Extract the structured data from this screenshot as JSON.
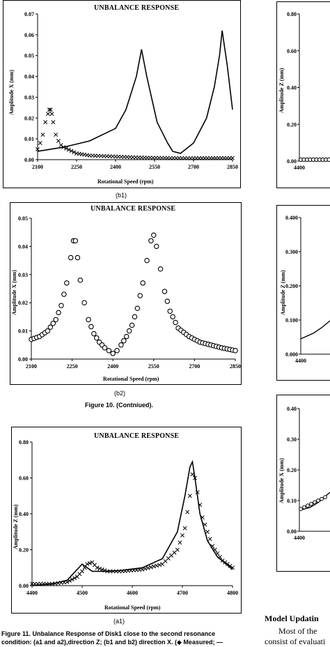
{
  "chart_data": [
    {
      "id": "b1",
      "type": "line",
      "title": "UNBALANCE RESPONSE",
      "xlabel": "Rotational Speed (rpm)",
      "ylabel": "Amplitude X (mm)",
      "xlim": [
        2100,
        2850
      ],
      "ylim": [
        0,
        0.07
      ],
      "xticks": [
        "2100",
        "2250",
        "2400",
        "2550",
        "2700",
        "2850"
      ],
      "yticks": [
        "0.00",
        "0.01",
        "0.02",
        "0.03",
        "0.04",
        "0.05",
        "0.06",
        "0.07"
      ],
      "caption": "(b1)",
      "series": [
        {
          "marker": "cross",
          "x": [
            2100,
            2110,
            2120,
            2130,
            2140,
            2145,
            2150,
            2155,
            2160,
            2170,
            2180,
            2190,
            2200,
            2250,
            2300,
            2400,
            2500,
            2600,
            2700,
            2850
          ],
          "y": [
            0.005,
            0.008,
            0.012,
            0.018,
            0.022,
            0.024,
            0.024,
            0.022,
            0.018,
            0.012,
            0.009,
            0.007,
            0.006,
            0.003,
            0.002,
            0.0015,
            0.001,
            0.0008,
            0.0007,
            0.0008
          ]
        },
        {
          "marker": "line",
          "x": [
            2100,
            2200,
            2300,
            2400,
            2440,
            2480,
            2500,
            2520,
            2560,
            2600,
            2620,
            2650,
            2700,
            2750,
            2780,
            2800,
            2810,
            2830,
            2850
          ],
          "y": [
            0.004,
            0.006,
            0.009,
            0.015,
            0.024,
            0.04,
            0.053,
            0.04,
            0.018,
            0.008,
            0.004,
            0.003,
            0.008,
            0.02,
            0.035,
            0.05,
            0.062,
            0.045,
            0.024
          ]
        }
      ]
    },
    {
      "id": "b2",
      "type": "scatter",
      "title": "UNBALANCE RESPONSE",
      "xlabel": "Rotational Speed (rpm)",
      "ylabel": "Amplitude X (mm)",
      "xlim": [
        2100,
        2850
      ],
      "ylim": [
        0,
        0.05
      ],
      "xticks": [
        "2100",
        "2250",
        "2400",
        "2550",
        "2700",
        "2850"
      ],
      "yticks": [
        "0.00",
        "0.01",
        "0.02",
        "0.03",
        "0.04",
        "0.05"
      ],
      "caption": "(b2)",
      "series": [
        {
          "marker": "circle",
          "x": [
            2100,
            2130,
            2160,
            2190,
            2210,
            2230,
            2245,
            2255,
            2262,
            2270,
            2280,
            2295,
            2310,
            2330,
            2350,
            2370,
            2385,
            2400,
            2415,
            2430,
            2450,
            2470,
            2490,
            2510,
            2525,
            2540,
            2550,
            2560,
            2575,
            2590,
            2610,
            2640,
            2680,
            2720,
            2760,
            2800,
            2850
          ],
          "y": [
            0.007,
            0.008,
            0.01,
            0.014,
            0.019,
            0.027,
            0.036,
            0.042,
            0.042,
            0.036,
            0.028,
            0.02,
            0.014,
            0.009,
            0.006,
            0.004,
            0.003,
            0.002,
            0.003,
            0.005,
            0.008,
            0.012,
            0.018,
            0.027,
            0.035,
            0.042,
            0.044,
            0.04,
            0.032,
            0.024,
            0.017,
            0.011,
            0.008,
            0.006,
            0.005,
            0.004,
            0.003
          ]
        }
      ]
    },
    {
      "id": "a1",
      "type": "line",
      "title": "UNBALANCE RESPONSE",
      "xlabel": "Rotational Speed (rpm)",
      "ylabel": "Amplitude Z (mm)",
      "xlim": [
        4400,
        4800
      ],
      "ylim": [
        0,
        0.8
      ],
      "xticks": [
        "4400",
        "4500",
        "4600",
        "4700",
        "4800"
      ],
      "yticks": [
        "0.00",
        "0.20",
        "0.40",
        "0.60",
        "0.80"
      ],
      "caption": "(a1)",
      "series": [
        {
          "marker": "cross",
          "x": [
            4400,
            4440,
            4470,
            4490,
            4500,
            4510,
            4520,
            4530,
            4550,
            4580,
            4620,
            4660,
            4690,
            4705,
            4715,
            4720,
            4725,
            4730,
            4740,
            4760,
            4780,
            4800
          ],
          "y": [
            0.01,
            0.01,
            0.02,
            0.05,
            0.08,
            0.12,
            0.13,
            0.1,
            0.08,
            0.08,
            0.09,
            0.12,
            0.2,
            0.32,
            0.5,
            0.62,
            0.6,
            0.52,
            0.38,
            0.22,
            0.14,
            0.1
          ]
        },
        {
          "marker": "line",
          "x": [
            4400,
            4440,
            4470,
            4490,
            4500,
            4510,
            4520,
            4530,
            4550,
            4580,
            4620,
            4660,
            4690,
            4705,
            4715,
            4720,
            4725,
            4735,
            4750,
            4770,
            4800
          ],
          "y": [
            0.0,
            0.01,
            0.03,
            0.09,
            0.12,
            0.1,
            0.08,
            0.08,
            0.08,
            0.085,
            0.1,
            0.15,
            0.3,
            0.5,
            0.66,
            0.69,
            0.6,
            0.4,
            0.25,
            0.16,
            0.09
          ]
        }
      ]
    },
    {
      "id": "right-top",
      "type": "scatter",
      "ylabel": "Amplitude Z (mm)",
      "xticks": [
        "4400"
      ],
      "yticks": [
        "0.00",
        "0.20",
        "0.40",
        "0.60",
        "0.80"
      ]
    },
    {
      "id": "right-mid",
      "type": "scatter",
      "ylabel": "Amplitude Z (mm)",
      "xticks": [
        "4400"
      ],
      "yticks": [
        "0.000",
        "0.100",
        "0.200",
        "0.300",
        "0.400"
      ]
    },
    {
      "id": "right-bot",
      "type": "scatter",
      "ylabel": "Amplitude X (mm)",
      "xticks": [
        "4400"
      ],
      "yticks": [
        "0.00",
        "0.10",
        "0.20",
        "0.30",
        "0.40"
      ]
    }
  ],
  "figure10_caption": "Figure 10. (Contniued).",
  "figure11_caption_line1": "Figure 11. Unbalance Response of Disk1 close to the second resonance",
  "figure11_caption_line2": "condition: (a1 and a2),direction Z; (b1 and b2) direction X. (◆ Measured; —",
  "section_heading": "Model Updatin",
  "body_line1": "Most of the",
  "body_line2": "consist of evaluati"
}
